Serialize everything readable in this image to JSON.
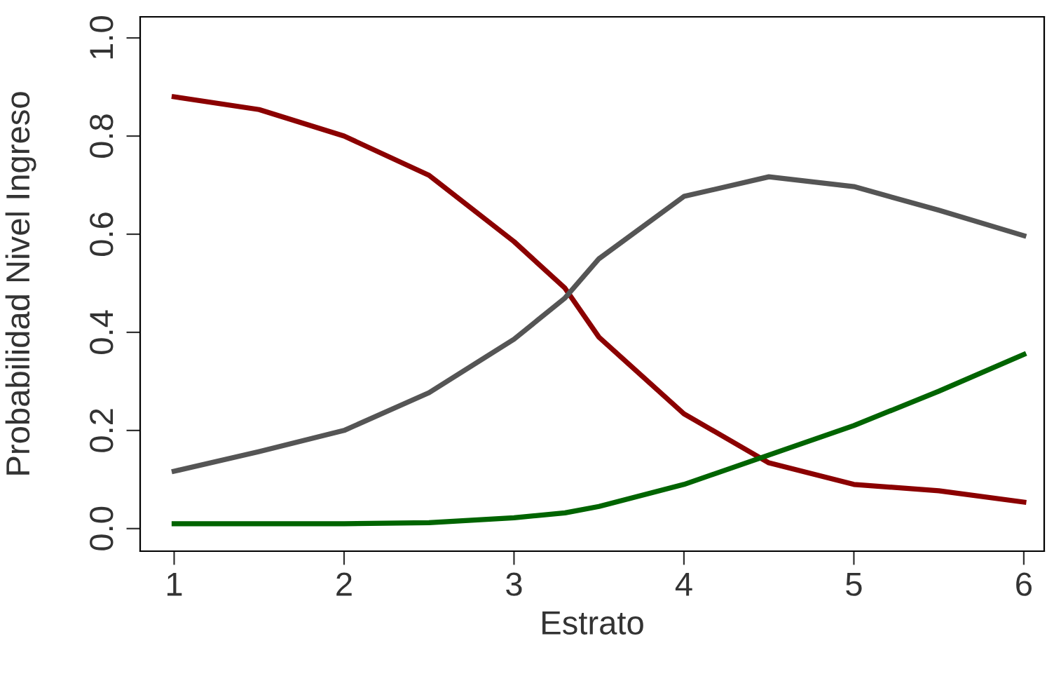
{
  "chart_data": {
    "type": "line",
    "xlabel": "Estrato",
    "ylabel": "Probabilidad Nivel Ingreso",
    "xlim": [
      0.8,
      6.12
    ],
    "ylim": [
      -0.046,
      1.043
    ],
    "xticks": [
      1,
      2,
      3,
      4,
      5,
      6
    ],
    "yticks": [
      {
        "value": 0,
        "label": "0.0"
      },
      0.2,
      0.4,
      0.6,
      0.8,
      {
        "value": 1,
        "label": "1.0"
      }
    ],
    "grid": false,
    "marker": "none",
    "line_style": "solid",
    "x": [
      1,
      1.5,
      2,
      2.5,
      3,
      3.3,
      3.5,
      4,
      4.5,
      5,
      5.5,
      6
    ],
    "series": [
      {
        "color": "#8b0000",
        "values": [
          0.88,
          0.854,
          0.8,
          0.72,
          0.585,
          0.49,
          0.39,
          0.234,
          0.134,
          0.09,
          0.077,
          0.054
        ]
      },
      {
        "color": "#555555",
        "values": [
          0.117,
          0.157,
          0.2,
          0.277,
          0.386,
          0.47,
          0.55,
          0.677,
          0.717,
          0.697,
          0.649,
          0.597
        ]
      },
      {
        "color": "#006400",
        "values": [
          0.01,
          0.01,
          0.01,
          0.012,
          0.022,
          0.032,
          0.045,
          0.09,
          0.15,
          0.21,
          0.28,
          0.355
        ]
      }
    ]
  }
}
